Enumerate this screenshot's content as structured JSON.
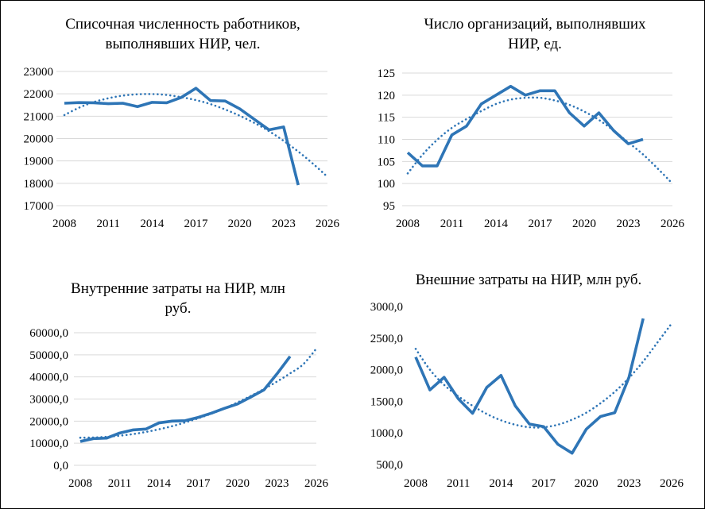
{
  "chart_data": [
    {
      "id": "c1",
      "type": "line",
      "title_lines": [
        "Списочная численность работников,",
        "выполнявших НИР, чел."
      ],
      "x_ticks": [
        2008,
        2011,
        2014,
        2017,
        2020,
        2023,
        2026
      ],
      "xlim": [
        2008,
        2026
      ],
      "ylim": [
        17000,
        23000
      ],
      "y_ticks": [
        17000,
        18000,
        19000,
        20000,
        21000,
        22000,
        23000
      ],
      "y_tick_labels": [
        "17000",
        "18000",
        "19000",
        "20000",
        "21000",
        "22000",
        "23000"
      ],
      "grid": true,
      "series": [
        {
          "name": "actual",
          "style": "solid",
          "color": "#2E75B6",
          "x": [
            2008,
            2009,
            2010,
            2011,
            2012,
            2013,
            2014,
            2015,
            2016,
            2017,
            2018,
            2019,
            2020,
            2021,
            2022,
            2023,
            2024
          ],
          "values": [
            21580,
            21610,
            21600,
            21560,
            21580,
            21430,
            21620,
            21600,
            21840,
            22250,
            21700,
            21680,
            21330,
            20860,
            20390,
            20520,
            17920
          ]
        },
        {
          "name": "trend",
          "style": "dotted",
          "color": "#2E75B6",
          "x": [
            2008,
            2009,
            2010,
            2011,
            2012,
            2013,
            2014,
            2015,
            2016,
            2017,
            2018,
            2019,
            2020,
            2021,
            2022,
            2023,
            2024,
            2025,
            2026
          ],
          "values": [
            21050,
            21380,
            21630,
            21800,
            21920,
            21980,
            21990,
            21950,
            21850,
            21720,
            21540,
            21300,
            21020,
            20700,
            20330,
            19900,
            19420,
            18880,
            18290
          ]
        }
      ]
    },
    {
      "id": "c2",
      "type": "line",
      "title_lines": [
        "Число организаций, выполнявших",
        "НИР, ед."
      ],
      "x_ticks": [
        2008,
        2011,
        2014,
        2017,
        2020,
        2023,
        2026
      ],
      "xlim": [
        2008,
        2026
      ],
      "ylim": [
        95,
        125
      ],
      "y_ticks": [
        95,
        100,
        105,
        110,
        115,
        120,
        125
      ],
      "y_tick_labels": [
        "95",
        "100",
        "105",
        "110",
        "115",
        "120",
        "125"
      ],
      "grid": true,
      "series": [
        {
          "name": "actual",
          "style": "solid",
          "color": "#2E75B6",
          "x": [
            2008,
            2009,
            2010,
            2011,
            2012,
            2013,
            2014,
            2015,
            2016,
            2017,
            2018,
            2019,
            2020,
            2021,
            2022,
            2023,
            2024
          ],
          "values": [
            107,
            104,
            104,
            111,
            113,
            118,
            120,
            122,
            120,
            121,
            121,
            116,
            113,
            116,
            112,
            109,
            110
          ]
        },
        {
          "name": "trend",
          "style": "dotted",
          "color": "#2E75B6",
          "x": [
            2008,
            2009,
            2010,
            2011,
            2012,
            2013,
            2014,
            2015,
            2016,
            2017,
            2018,
            2019,
            2020,
            2021,
            2022,
            2023,
            2024,
            2025,
            2026
          ],
          "values": [
            102.3,
            106.5,
            109.9,
            112.6,
            114.6,
            116.4,
            118.0,
            119.0,
            119.4,
            119.4,
            118.8,
            117.8,
            116.3,
            114.4,
            112.0,
            109.3,
            106.6,
            103.4,
            100.0
          ]
        }
      ]
    },
    {
      "id": "c3",
      "type": "line",
      "title_lines": [
        "Внутренние затраты на НИР, млн",
        "руб."
      ],
      "x_ticks": [
        2008,
        2011,
        2014,
        2017,
        2020,
        2023,
        2026
      ],
      "xlim": [
        2008,
        2026
      ],
      "ylim": [
        0,
        60000
      ],
      "y_ticks": [
        0,
        10000,
        20000,
        30000,
        40000,
        50000,
        60000
      ],
      "y_tick_labels": [
        "0,0",
        "10000,0",
        "20000,0",
        "30000,0",
        "40000,0",
        "50000,0",
        "60000,0"
      ],
      "grid": true,
      "series": [
        {
          "name": "actual",
          "style": "solid",
          "color": "#2E75B6",
          "x": [
            2008,
            2009,
            2010,
            2011,
            2012,
            2013,
            2014,
            2015,
            2016,
            2017,
            2018,
            2019,
            2020,
            2021,
            2022,
            2023,
            2024
          ],
          "values": [
            10800,
            12100,
            12300,
            14600,
            16000,
            16400,
            19200,
            20000,
            20200,
            21700,
            23600,
            25800,
            27800,
            30900,
            34100,
            41400,
            49300
          ]
        },
        {
          "name": "trend",
          "style": "dotted",
          "color": "#2E75B6",
          "x": [
            2008,
            2009,
            2010,
            2011,
            2012,
            2013,
            2014,
            2015,
            2016,
            2017,
            2018,
            2019,
            2020,
            2021,
            2022,
            2023,
            2024,
            2025,
            2026
          ],
          "values": [
            12500,
            12600,
            12900,
            13400,
            14100,
            15100,
            16300,
            17700,
            19400,
            21300,
            23400,
            25800,
            28500,
            31400,
            34500,
            37900,
            41600,
            45700,
            52800
          ]
        }
      ]
    },
    {
      "id": "c4",
      "type": "line",
      "title_lines": [
        "Внешние затраты на НИР, млн руб."
      ],
      "x_ticks": [
        2008,
        2011,
        2014,
        2017,
        2020,
        2023,
        2026
      ],
      "xlim": [
        2008,
        2026
      ],
      "ylim": [
        500,
        3000
      ],
      "y_ticks": [
        500,
        1000,
        1500,
        2000,
        2500,
        3000
      ],
      "y_tick_labels": [
        "500,0",
        "1000,0",
        "1500,0",
        "2000,0",
        "2500,0",
        "3000,0"
      ],
      "grid": false,
      "series": [
        {
          "name": "actual",
          "style": "solid",
          "color": "#2E75B6",
          "x": [
            2008,
            2009,
            2010,
            2011,
            2012,
            2013,
            2014,
            2015,
            2016,
            2017,
            2018,
            2019,
            2020,
            2021,
            2022,
            2023,
            2024
          ],
          "values": [
            2200,
            1680,
            1880,
            1540,
            1310,
            1720,
            1910,
            1430,
            1140,
            1100,
            820,
            680,
            1060,
            1260,
            1320,
            1880,
            2810
          ]
        },
        {
          "name": "trend",
          "style": "dotted",
          "color": "#2E75B6",
          "x": [
            2008,
            2009,
            2010,
            2011,
            2012,
            2013,
            2014,
            2015,
            2016,
            2017,
            2018,
            2019,
            2020,
            2021,
            2022,
            2023,
            2024,
            2025,
            2026
          ],
          "values": [
            2330,
            2000,
            1760,
            1580,
            1430,
            1300,
            1200,
            1130,
            1090,
            1090,
            1130,
            1210,
            1320,
            1470,
            1650,
            1870,
            2130,
            2430,
            2730
          ]
        }
      ]
    }
  ]
}
